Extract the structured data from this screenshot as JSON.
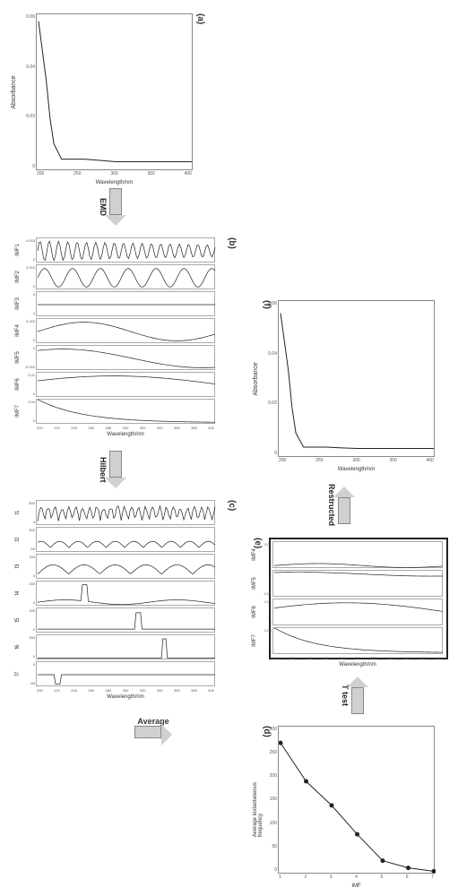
{
  "colors": {
    "axis": "#888888",
    "line": "#222222",
    "bg": "#ffffff",
    "arrow_fill": "#d0d0d0",
    "text": "#333333"
  },
  "panel_a": {
    "label": "(a)",
    "type": "line",
    "xlabel": "Wavelength/nm",
    "ylabel": "Absorbance",
    "xlim": [
      200,
      400
    ],
    "ylim": [
      0.0,
      0.06
    ],
    "xticks": [
      200,
      250,
      300,
      350,
      400
    ],
    "yticks": [
      0.0,
      0.02,
      0.04,
      0.06
    ],
    "data_x": [
      200,
      210,
      215,
      220,
      230,
      240,
      260,
      280,
      300,
      320,
      340,
      360,
      380,
      400
    ],
    "data_y": [
      0.058,
      0.035,
      0.02,
      0.01,
      0.004,
      0.004,
      0.004,
      0.0035,
      0.003,
      0.003,
      0.003,
      0.003,
      0.003,
      0.003
    ],
    "line_color": "#222222",
    "line_width": 1
  },
  "arrow_emd": {
    "label": "EMD",
    "direction": "down"
  },
  "panel_b": {
    "label": "(b)",
    "type": "stacked-line",
    "xlabel": "Wavelength/nm",
    "xlim": [
      200,
      400
    ],
    "xticks": [
      200,
      220,
      240,
      260,
      280,
      300,
      320,
      340,
      360,
      380,
      400
    ],
    "imfs": [
      {
        "name": "IMF1",
        "ylim": [
          0.0,
          0.003
        ],
        "yticks": [
          0.0,
          0.003
        ],
        "preset": "highfreq"
      },
      {
        "name": "IMF2",
        "ylim": [
          0.0,
          0.002
        ],
        "yticks": [
          0.0,
          0.002
        ],
        "preset": "medfreq"
      },
      {
        "name": "IMF3",
        "ylim": [
          0.0,
          0.0
        ],
        "yticks": [
          0.0,
          0.0
        ],
        "preset": "lowfreq"
      },
      {
        "name": "IMF4",
        "ylim": [
          0.0,
          0.002
        ],
        "yticks": [
          0.0,
          0.002
        ],
        "preset": "slow1"
      },
      {
        "name": "IMF5",
        "ylim": [
          -0.002,
          0.0
        ],
        "yticks": [
          -0.002,
          0.0
        ],
        "preset": "slow2"
      },
      {
        "name": "IMF6",
        "ylim": [
          0.0,
          0.01
        ],
        "yticks": [
          0.0,
          0.01
        ],
        "preset": "slow3"
      },
      {
        "name": "IMF7",
        "ylim": [
          0.0,
          0.04
        ],
        "yticks": [
          0.0,
          0.04
        ],
        "preset": "trend"
      }
    ],
    "line_color": "#222222"
  },
  "arrow_hilbert": {
    "label": "Hilbert",
    "direction": "down"
  },
  "panel_c": {
    "label": "(c)",
    "type": "stacked-line",
    "xlabel": "Wavelength/nm",
    "xlim": [
      200,
      400
    ],
    "xticks": [
      200,
      220,
      240,
      260,
      280,
      300,
      320,
      340,
      360,
      380,
      400
    ],
    "freqs": [
      {
        "name": "f1",
        "ylim": [
          0,
          600
        ],
        "yticks": [
          0,
          600
        ],
        "preset": "spike_high"
      },
      {
        "name": "f2",
        "ylim": [
          -50,
          500
        ],
        "yticks": [
          -50,
          500
        ],
        "preset": "spike_med"
      },
      {
        "name": "f3",
        "ylim": [
          0,
          200
        ],
        "yticks": [
          0,
          200
        ],
        "preset": "spike_med2"
      },
      {
        "name": "f4",
        "ylim": [
          0,
          200
        ],
        "yticks": [
          0,
          200
        ],
        "preset": "spike_low"
      },
      {
        "name": "f5",
        "ylim": [
          0,
          200
        ],
        "yticks": [
          0,
          200
        ],
        "preset": "spike_vlow"
      },
      {
        "name": "f6",
        "ylim": [
          0,
          300
        ],
        "yticks": [
          0,
          300
        ],
        "preset": "spike_vlow2"
      },
      {
        "name": "f7",
        "ylim": [
          -50,
          0
        ],
        "yticks": [
          -50,
          0
        ],
        "preset": "dip"
      }
    ],
    "line_color": "#222222"
  },
  "arrow_average": {
    "label": "Average",
    "direction": "right-up"
  },
  "panel_d": {
    "label": "(d)",
    "type": "line-markers",
    "xlabel": "IMF",
    "ylabel": "Average instantaneous frequency",
    "xlim": [
      1,
      7
    ],
    "ylim": [
      0,
      300
    ],
    "xticks": [
      1,
      2,
      3,
      4,
      5,
      6,
      7
    ],
    "yticks": [
      0,
      50,
      100,
      150,
      200,
      250,
      300
    ],
    "data_x": [
      1,
      2,
      3,
      4,
      5,
      6,
      7
    ],
    "data_y": [
      270,
      190,
      140,
      80,
      25,
      10,
      3
    ],
    "marker": "circle",
    "marker_size": 3,
    "line_color": "#222222"
  },
  "arrow_ttest": {
    "label": "T test",
    "direction": "up"
  },
  "panel_e": {
    "label": "(e)",
    "type": "stacked-line",
    "xlabel": "Wavelength/nm",
    "xlim": [
      200,
      400
    ],
    "xticks": [
      200,
      220,
      240,
      260,
      280,
      300,
      320,
      340,
      360,
      380,
      400
    ],
    "boxed": true,
    "imfs": [
      {
        "name": "IMF4",
        "ylim": [
          0.0,
          0.01
        ],
        "yticks": [
          0.0,
          0.01
        ],
        "preset": "slow1"
      },
      {
        "name": "IMF5",
        "ylim": [
          -0.01,
          0.0
        ],
        "yticks": [
          -0.01,
          0.0
        ],
        "preset": "slow2"
      },
      {
        "name": "IMF6",
        "ylim": [
          0.0,
          0.01
        ],
        "yticks": [
          0.0,
          0.01
        ],
        "preset": "slow3"
      },
      {
        "name": "IMF7",
        "ylim": [
          0.0,
          0.04
        ],
        "yticks": [
          0.0,
          0.04
        ],
        "preset": "trend"
      }
    ],
    "line_color": "#222222"
  },
  "arrow_restructed": {
    "label": "Restructed",
    "direction": "up"
  },
  "panel_f": {
    "label": "(f)",
    "type": "line",
    "xlabel": "Wavelength/nm",
    "ylabel": "Absorbance",
    "xlim": [
      200,
      400
    ],
    "ylim": [
      0.0,
      0.06
    ],
    "xticks": [
      200,
      250,
      300,
      350,
      400
    ],
    "yticks": [
      0.0,
      0.02,
      0.04,
      0.06
    ],
    "data_x": [
      200,
      210,
      215,
      220,
      230,
      240,
      260,
      280,
      300,
      320,
      340,
      360,
      380,
      400
    ],
    "data_y": [
      0.056,
      0.034,
      0.019,
      0.009,
      0.0035,
      0.0035,
      0.0035,
      0.0032,
      0.003,
      0.003,
      0.003,
      0.003,
      0.003,
      0.003
    ],
    "line_color": "#222222",
    "line_width": 1
  }
}
